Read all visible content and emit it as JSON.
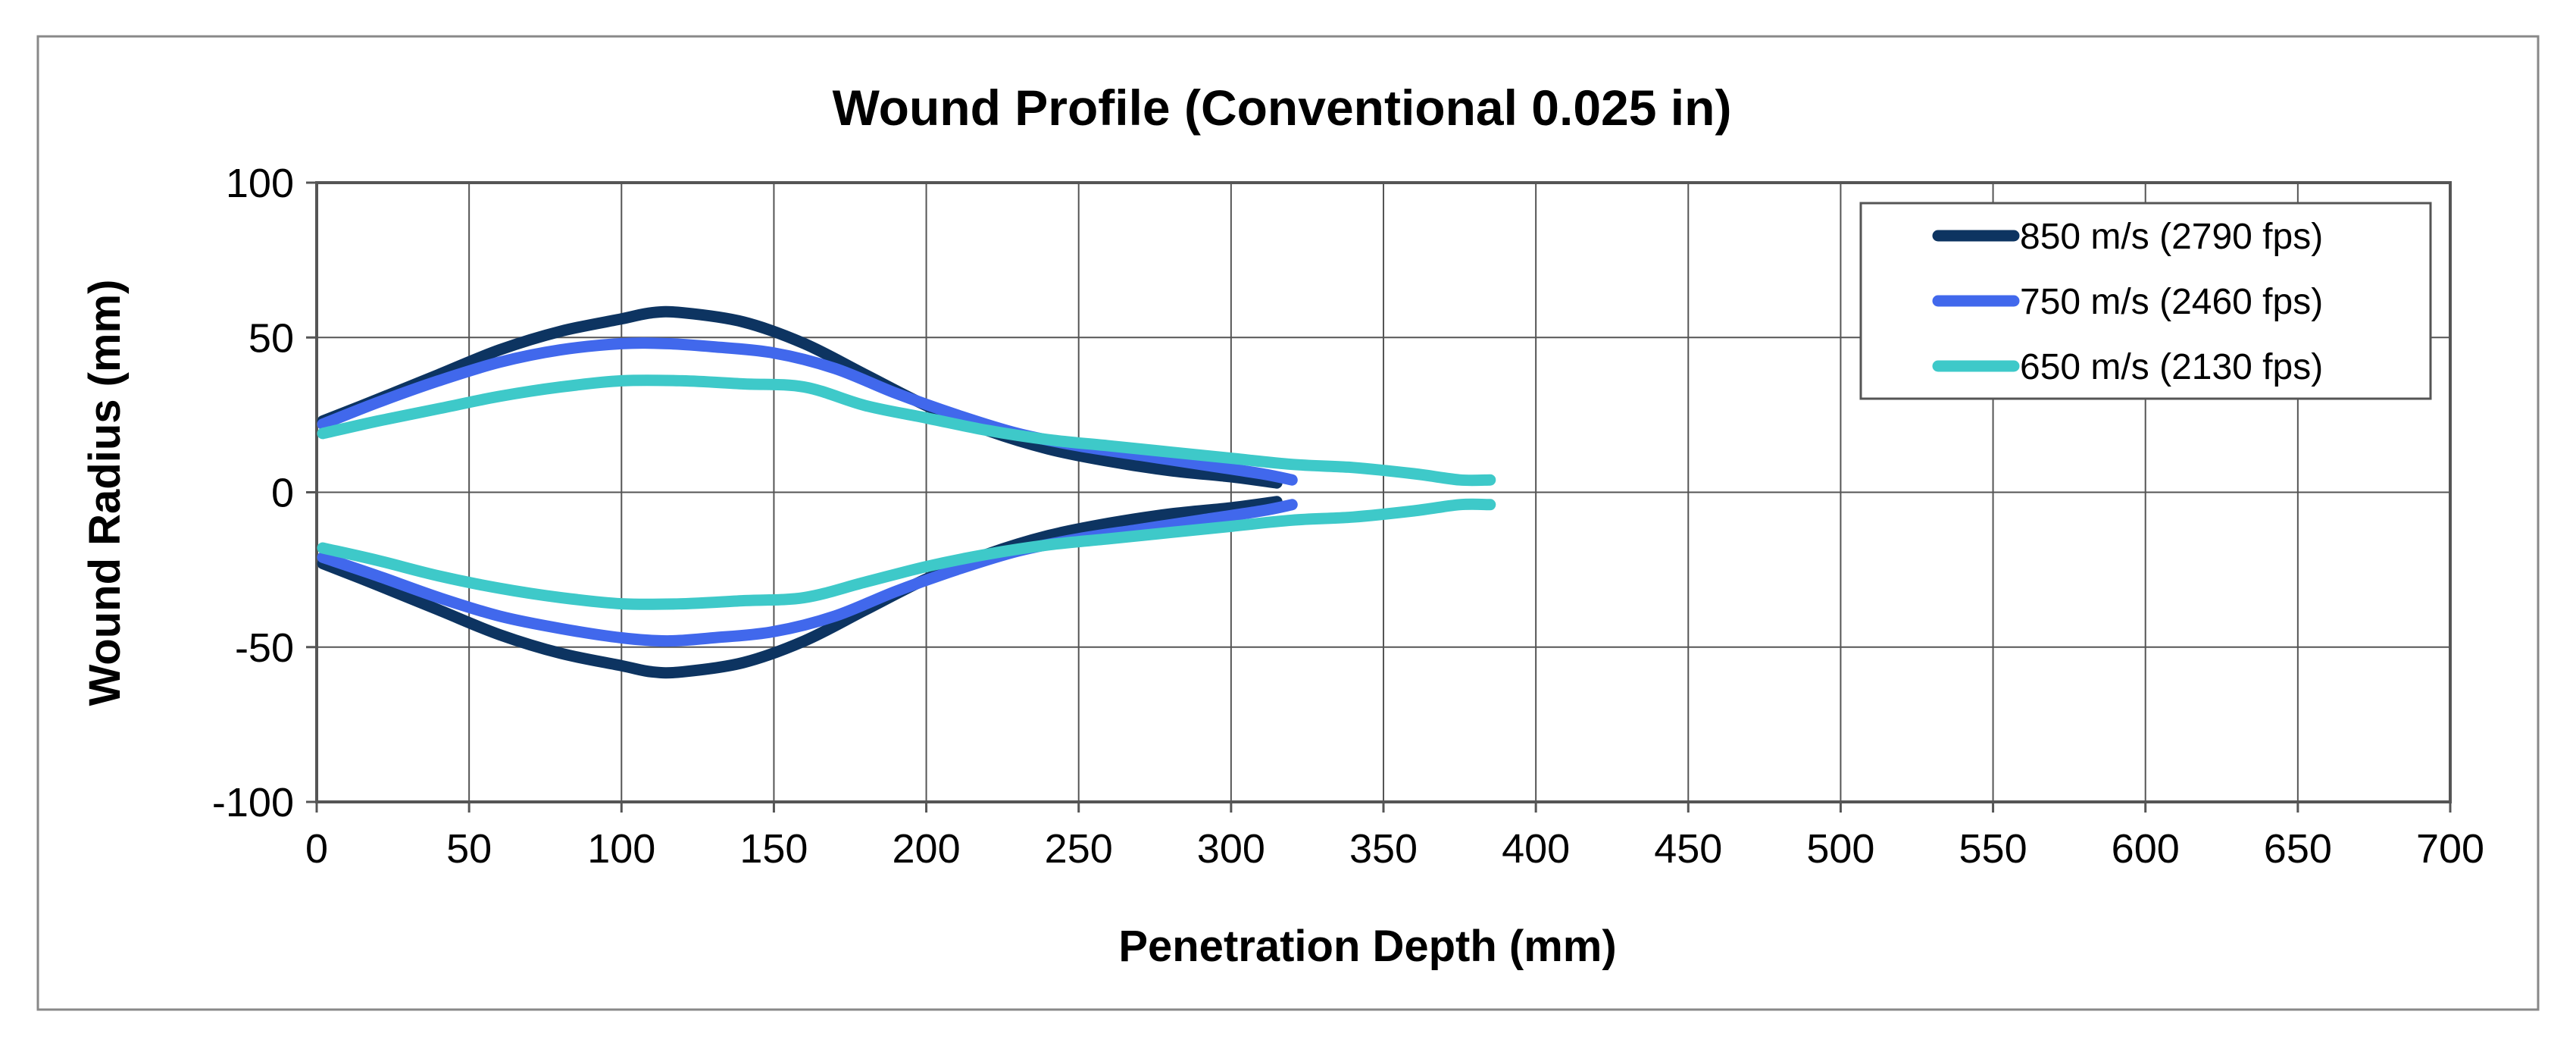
{
  "chart_data": {
    "type": "line",
    "title": "Wound Profile (Conventional 0.025 in)",
    "xlabel": "Penetration Depth (mm)",
    "ylabel": "Wound Radius (mm)",
    "xlim": [
      0,
      700
    ],
    "ylim": [
      -100,
      100
    ],
    "xticks": [
      "0",
      "50",
      "100",
      "150",
      "200",
      "250",
      "300",
      "350",
      "400",
      "450",
      "500",
      "550",
      "600",
      "650",
      "700"
    ],
    "yticks": [
      "100",
      "50",
      "0",
      "-50",
      "-100"
    ],
    "grid": true,
    "legend_position": "top-right",
    "series": [
      {
        "name": "850 m/s (2790 fps)",
        "color": "#0d3461",
        "x": [
          2,
          20,
          40,
          60,
          80,
          100,
          110,
          120,
          140,
          160,
          180,
          200,
          220,
          240,
          260,
          280,
          300,
          315
        ],
        "upper": [
          23,
          30,
          38,
          46,
          52,
          56,
          58,
          58,
          55,
          48,
          38,
          28,
          20,
          14,
          10,
          7,
          5,
          3
        ],
        "lower": [
          -23,
          -30,
          -38,
          -46,
          -52,
          -56,
          -58,
          -58,
          -55,
          -48,
          -38,
          -28,
          -20,
          -14,
          -10,
          -7,
          -5,
          -3
        ]
      },
      {
        "name": "750 m/s (2460 fps)",
        "color": "#4168ec",
        "x": [
          2,
          20,
          40,
          60,
          80,
          100,
          115,
          130,
          150,
          170,
          190,
          210,
          230,
          250,
          270,
          290,
          310,
          320
        ],
        "upper": [
          22,
          29,
          36,
          42,
          46,
          48,
          48,
          47,
          45,
          40,
          32,
          25,
          19,
          15,
          12,
          9,
          6,
          4
        ],
        "lower": [
          -21,
          -27,
          -34,
          -40,
          -44,
          -47,
          -48,
          -47,
          -45,
          -40,
          -32,
          -25,
          -19,
          -15,
          -12,
          -9,
          -6,
          -4
        ]
      },
      {
        "name": "650 m/s (2130 fps)",
        "color": "#3ec9c9",
        "x": [
          2,
          20,
          40,
          60,
          80,
          100,
          120,
          140,
          160,
          180,
          200,
          220,
          240,
          260,
          280,
          300,
          320,
          340,
          360,
          375,
          385
        ],
        "upper": [
          19,
          23,
          27,
          31,
          34,
          36,
          36,
          35,
          34,
          28,
          24,
          20,
          17,
          15,
          13,
          11,
          9,
          8,
          6,
          4,
          4
        ],
        "lower": [
          -18,
          -22,
          -27,
          -31,
          -34,
          -36,
          -36,
          -35,
          -34,
          -29,
          -24,
          -20,
          -17,
          -15,
          -13,
          -11,
          -9,
          -8,
          -6,
          -4,
          -4
        ]
      }
    ]
  }
}
